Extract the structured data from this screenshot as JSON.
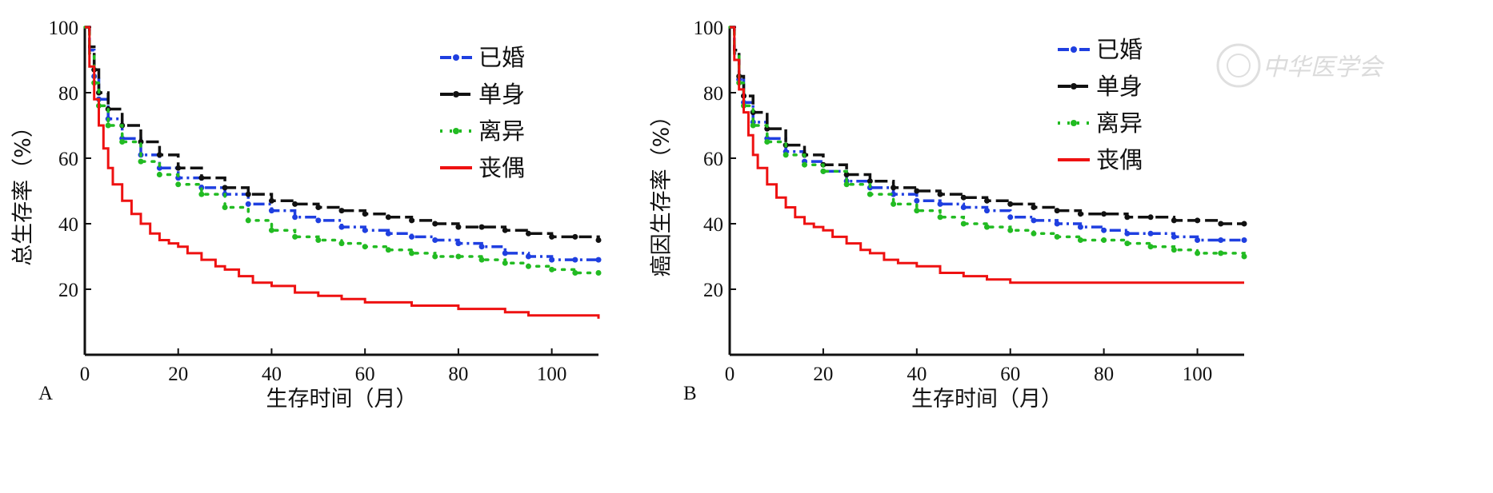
{
  "chart_data": [
    {
      "type": "line",
      "panel_label": "A",
      "xlabel": "生存时间（月）",
      "ylabel": "总生存率（%）",
      "xlim": [
        0,
        110
      ],
      "ylim": [
        0,
        100
      ],
      "xticks": [
        0,
        20,
        40,
        60,
        80,
        100
      ],
      "yticks": [
        20,
        40,
        60,
        80,
        100
      ],
      "legend_position": "top-right",
      "series": [
        {
          "name": "已婚",
          "color": "#1f3fe0",
          "style": "dash-dot",
          "x": [
            0,
            1,
            2,
            3,
            5,
            8,
            12,
            16,
            20,
            25,
            30,
            35,
            40,
            45,
            50,
            55,
            60,
            65,
            70,
            75,
            80,
            85,
            90,
            95,
            100,
            105,
            110
          ],
          "y": [
            100,
            93,
            85,
            78,
            72,
            66,
            61,
            57,
            54,
            51,
            49,
            46,
            44,
            42,
            41,
            39,
            38,
            37,
            36,
            35,
            34,
            33,
            31,
            30,
            29,
            29,
            29
          ]
        },
        {
          "name": "单身",
          "color": "#111111",
          "style": "dash",
          "x": [
            0,
            1,
            2,
            3,
            5,
            8,
            12,
            16,
            20,
            25,
            30,
            35,
            40,
            45,
            50,
            55,
            60,
            65,
            70,
            75,
            80,
            85,
            90,
            95,
            100,
            105,
            110
          ],
          "y": [
            100,
            94,
            87,
            80,
            75,
            70,
            65,
            61,
            57,
            54,
            51,
            49,
            47,
            46,
            45,
            44,
            43,
            42,
            41,
            40,
            39,
            39,
            38,
            37,
            36,
            36,
            35
          ]
        },
        {
          "name": "离异",
          "color": "#22bb22",
          "style": "dotted",
          "x": [
            0,
            1,
            2,
            3,
            5,
            8,
            12,
            16,
            20,
            25,
            30,
            35,
            40,
            45,
            50,
            55,
            60,
            65,
            70,
            75,
            80,
            85,
            90,
            95,
            100,
            105,
            110
          ],
          "y": [
            100,
            92,
            83,
            76,
            70,
            65,
            59,
            55,
            52,
            49,
            45,
            41,
            38,
            36,
            35,
            34,
            33,
            32,
            31,
            30,
            30,
            29,
            28,
            27,
            26,
            25,
            25
          ]
        },
        {
          "name": "丧偶",
          "color": "#ee1111",
          "style": "solid",
          "x": [
            0,
            1,
            2,
            3,
            4,
            5,
            6,
            8,
            10,
            12,
            14,
            16,
            18,
            20,
            22,
            25,
            28,
            30,
            33,
            36,
            40,
            45,
            50,
            55,
            60,
            65,
            70,
            75,
            80,
            85,
            90,
            95,
            100,
            105,
            110
          ],
          "y": [
            100,
            88,
            78,
            70,
            63,
            57,
            52,
            47,
            43,
            40,
            37,
            35,
            34,
            33,
            31,
            29,
            27,
            26,
            24,
            22,
            21,
            19,
            18,
            17,
            16,
            16,
            15,
            15,
            14,
            14,
            13,
            12,
            12,
            12,
            11
          ]
        }
      ]
    },
    {
      "type": "line",
      "panel_label": "B",
      "xlabel": "生存时间（月）",
      "ylabel": "癌因生存率（%）",
      "xlim": [
        0,
        110
      ],
      "ylim": [
        0,
        100
      ],
      "xticks": [
        0,
        20,
        40,
        60,
        80,
        100
      ],
      "yticks": [
        20,
        40,
        60,
        80,
        100
      ],
      "legend_position": "top-right",
      "series": [
        {
          "name": "已婚",
          "color": "#1f3fe0",
          "style": "dash-dot",
          "x": [
            0,
            1,
            2,
            3,
            5,
            8,
            12,
            16,
            20,
            25,
            30,
            35,
            40,
            45,
            50,
            55,
            60,
            65,
            70,
            75,
            80,
            85,
            90,
            95,
            100,
            105,
            110
          ],
          "y": [
            100,
            92,
            84,
            77,
            71,
            66,
            62,
            59,
            56,
            53,
            51,
            49,
            47,
            46,
            45,
            44,
            42,
            41,
            40,
            39,
            38,
            37,
            37,
            36,
            35,
            35,
            35
          ]
        },
        {
          "name": "单身",
          "color": "#111111",
          "style": "dash",
          "x": [
            0,
            1,
            2,
            3,
            5,
            8,
            12,
            16,
            20,
            25,
            30,
            35,
            40,
            45,
            50,
            55,
            60,
            65,
            70,
            75,
            80,
            85,
            90,
            95,
            100,
            105,
            110
          ],
          "y": [
            100,
            93,
            85,
            79,
            74,
            69,
            64,
            61,
            58,
            55,
            53,
            51,
            50,
            49,
            48,
            47,
            46,
            45,
            44,
            43,
            43,
            42,
            42,
            41,
            41,
            40,
            40
          ]
        },
        {
          "name": "离异",
          "color": "#22bb22",
          "style": "dotted",
          "x": [
            0,
            1,
            2,
            3,
            5,
            8,
            12,
            16,
            20,
            25,
            30,
            35,
            40,
            45,
            50,
            55,
            60,
            65,
            70,
            75,
            80,
            85,
            90,
            95,
            100,
            105,
            110
          ],
          "y": [
            100,
            92,
            83,
            76,
            70,
            65,
            61,
            58,
            56,
            52,
            49,
            46,
            44,
            42,
            40,
            39,
            38,
            37,
            36,
            35,
            35,
            34,
            33,
            32,
            31,
            31,
            30
          ]
        },
        {
          "name": "丧偶",
          "color": "#ee1111",
          "style": "solid",
          "x": [
            0,
            1,
            2,
            3,
            4,
            5,
            6,
            8,
            10,
            12,
            14,
            16,
            18,
            20,
            22,
            25,
            28,
            30,
            33,
            36,
            40,
            45,
            50,
            55,
            60,
            65,
            70,
            75,
            80,
            85,
            90,
            95,
            100,
            105,
            110
          ],
          "y": [
            100,
            90,
            81,
            74,
            67,
            61,
            57,
            52,
            48,
            45,
            42,
            40,
            39,
            38,
            36,
            34,
            32,
            31,
            29,
            28,
            27,
            25,
            24,
            23,
            22,
            22,
            22,
            22,
            22,
            22,
            22,
            22,
            22,
            22,
            22
          ]
        }
      ]
    }
  ],
  "watermark_text": "中华医学会"
}
